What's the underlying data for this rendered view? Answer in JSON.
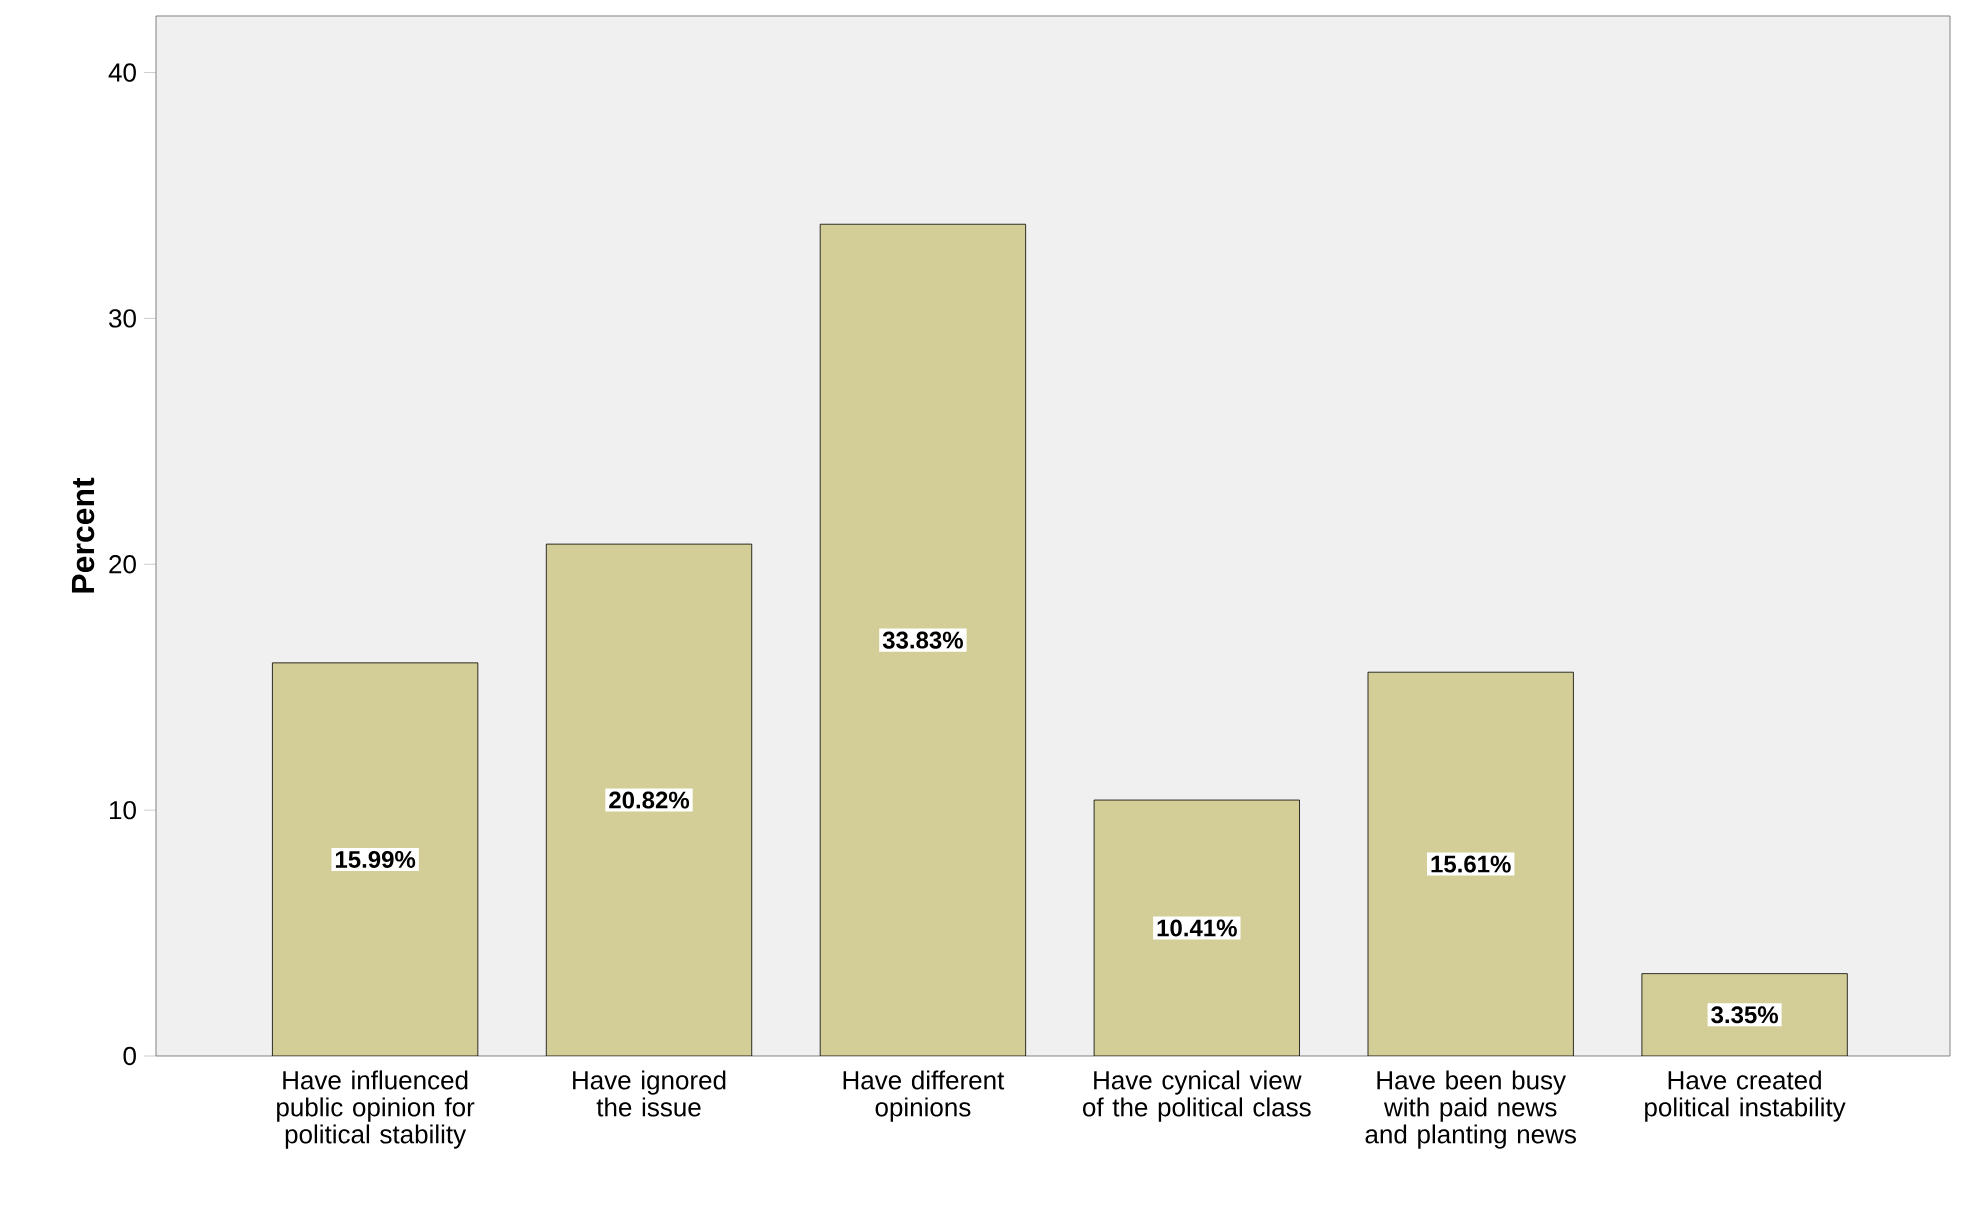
{
  "chart_data": {
    "type": "bar",
    "ylabel": "Percent",
    "categories": [
      "Have influenced public opinion for political stability",
      "Have ignored the issue",
      "Have different opinions",
      "Have cynical view of the political class",
      "Have been busy with paid news and planting news",
      "Have created political instability"
    ],
    "values": [
      15.99,
      20.82,
      33.83,
      10.41,
      15.61,
      3.35
    ],
    "value_labels": [
      "15.99%",
      "20.82%",
      "33.83%",
      "10.41%",
      "15.61%",
      "3.35%"
    ],
    "color": "#d3ce97",
    "ylim": [
      0,
      42.3
    ],
    "yticks": [
      0,
      10,
      20,
      30,
      40
    ],
    "grid": false
  }
}
